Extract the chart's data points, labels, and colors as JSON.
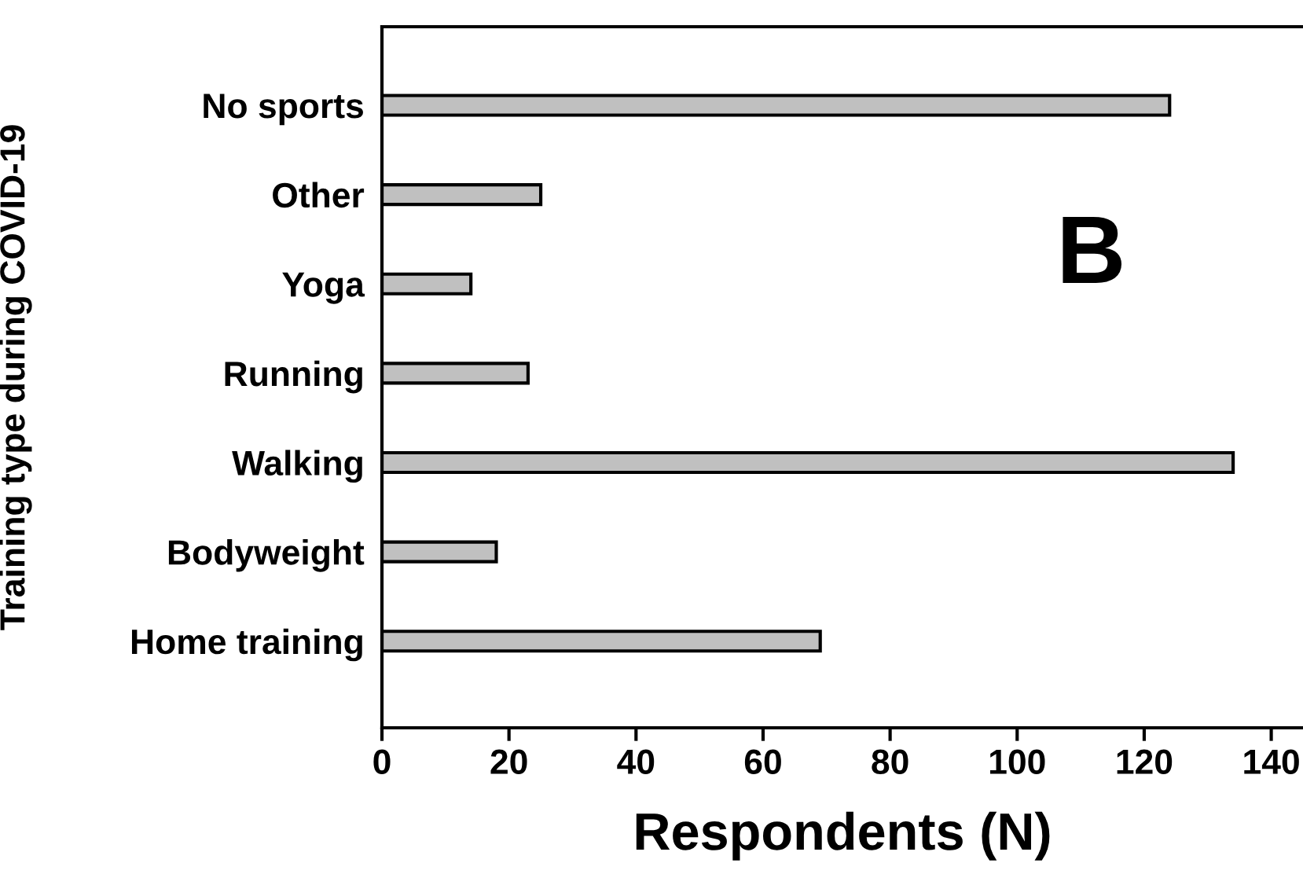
{
  "chart_data": {
    "type": "bar",
    "orientation": "horizontal",
    "categories": [
      "No sports",
      "Other",
      "Yoga",
      "Running",
      "Walking",
      "Bodyweight",
      "Home training"
    ],
    "values": [
      124,
      25,
      14,
      23,
      134,
      18,
      69
    ],
    "color": "#c0c0c0",
    "xlim": [
      0,
      145
    ],
    "xticks": [
      0,
      20,
      40,
      60,
      80,
      100,
      120,
      140
    ],
    "xlabel": "Respondents (N)",
    "ylabel": "Training type during COVID-19",
    "annotations": [
      "B"
    ],
    "grid": false,
    "legend": false
  }
}
